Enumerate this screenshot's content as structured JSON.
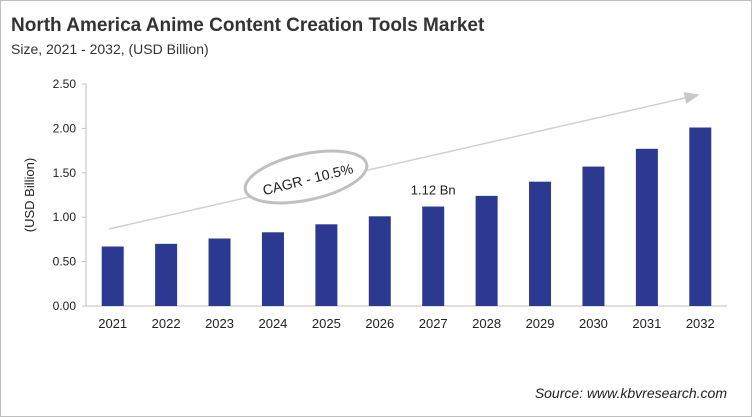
{
  "chart_data": {
    "type": "bar",
    "title": "North America Anime Content Creation Tools Market",
    "subtitle": "Size, 2021 - 2032, (USD Billion)",
    "xlabel": "",
    "ylabel": "(USD Billion)",
    "categories": [
      "2021",
      "2022",
      "2023",
      "2024",
      "2025",
      "2026",
      "2027",
      "2028",
      "2029",
      "2030",
      "2031",
      "2032"
    ],
    "values": [
      0.67,
      0.7,
      0.76,
      0.83,
      0.92,
      1.01,
      1.12,
      1.24,
      1.4,
      1.57,
      1.77,
      2.01
    ],
    "ylim": [
      0,
      2.5
    ],
    "yticks": [
      "0.00",
      "0.50",
      "1.00",
      "1.50",
      "2.00",
      "2.50"
    ],
    "grid": false,
    "bar_color": "#2b3990",
    "annotations": {
      "data_label": "1.12 Bn",
      "data_label_category": "2027",
      "cagr": "CAGR - 10.5%"
    },
    "source": "Source: www.kbvresearch.com"
  }
}
